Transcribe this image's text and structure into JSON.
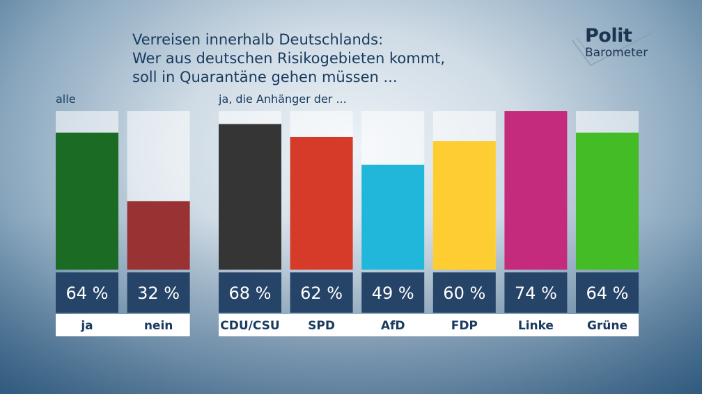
{
  "title_lines": [
    "Verreisen innerhalb Deutschlands:",
    "Wer aus deutschen Risikogebieten kommt,",
    "soll in Quarantäne gehen müssen ..."
  ],
  "logo": {
    "top": "Polit",
    "bottom": "Barometer"
  },
  "labels": {
    "group_all": "alle",
    "group_parties": "ja, die Anhänger der ..."
  },
  "chart_data": {
    "type": "bar",
    "ylim": [
      0,
      74
    ],
    "groups": [
      {
        "label": "alle",
        "bars": [
          {
            "category": "ja",
            "value": 64,
            "value_label": "64 %",
            "color": "#1c6b24"
          },
          {
            "category": "nein",
            "value": 32,
            "value_label": "32 %",
            "color": "#983233"
          }
        ]
      },
      {
        "label": "ja, die Anhänger der ...",
        "bars": [
          {
            "category": "CDU/CSU",
            "value": 68,
            "value_label": "68 %",
            "color": "#353535"
          },
          {
            "category": "SPD",
            "value": 62,
            "value_label": "62 %",
            "color": "#d63a28"
          },
          {
            "category": "AfD",
            "value": 49,
            "value_label": "49 %",
            "color": "#20b7da"
          },
          {
            "category": "FDP",
            "value": 60,
            "value_label": "60 %",
            "color": "#fdcd31"
          },
          {
            "category": "Linke",
            "value": 74,
            "value_label": "74 %",
            "color": "#c42b7d"
          },
          {
            "category": "Grüne",
            "value": 64,
            "value_label": "64 %",
            "color": "#43bc26"
          }
        ]
      }
    ]
  }
}
